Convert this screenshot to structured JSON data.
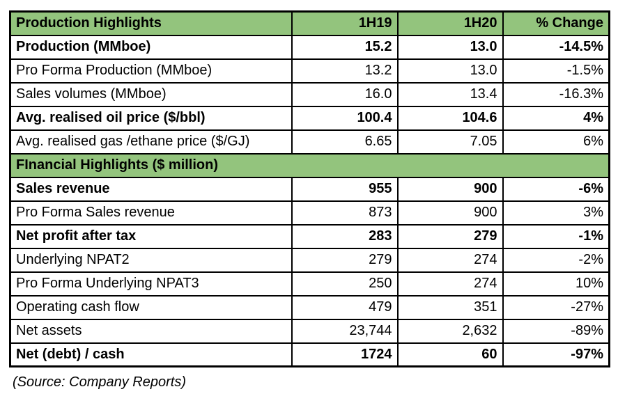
{
  "colors": {
    "section_header_bg": "#93c47d",
    "border": "#000000",
    "text": "#000000",
    "background": "#ffffff"
  },
  "chart_data": {
    "type": "table",
    "title": "Production Highlights",
    "header_row": {
      "label": "Production Highlights",
      "col1": "1H19",
      "col2": "1H20",
      "col3": "% Change"
    },
    "rows": [
      {
        "kind": "data",
        "bold": true,
        "label": "Production (MMboe)",
        "h19": "15.2",
        "h20": "13.0",
        "change": "-14.5%"
      },
      {
        "kind": "data",
        "bold": false,
        "label": "Pro Forma Production (MMboe)",
        "h19": "13.2",
        "h20": "13.0",
        "change": "-1.5%"
      },
      {
        "kind": "data",
        "bold": false,
        "label": "Sales volumes (MMboe)",
        "h19": "16.0",
        "h20": "13.4",
        "change": "-16.3%"
      },
      {
        "kind": "data",
        "bold": true,
        "label": "Avg. realised oil price ($/bbl)",
        "h19": "100.4",
        "h20": "104.6",
        "change": "4%"
      },
      {
        "kind": "data",
        "bold": false,
        "label": "Avg. realised gas /ethane price ($/GJ)",
        "h19": "6.65",
        "h20": "7.05",
        "change": "6%"
      },
      {
        "kind": "section",
        "bold": true,
        "label": "FInancial Highlights ($ million)"
      },
      {
        "kind": "data",
        "bold": true,
        "label": "Sales revenue",
        "h19": "955",
        "h20": "900",
        "change": "-6%"
      },
      {
        "kind": "data",
        "bold": false,
        "label": "Pro Forma Sales revenue",
        "h19": "873",
        "h20": "900",
        "change": "3%"
      },
      {
        "kind": "data",
        "bold": true,
        "label": "Net profit after tax",
        "h19": "283",
        "h20": "279",
        "change": "-1%"
      },
      {
        "kind": "data",
        "bold": false,
        "label": "Underlying NPAT2",
        "h19": "279",
        "h20": "274",
        "change": "-2%"
      },
      {
        "kind": "data",
        "bold": false,
        "label": "Pro Forma Underlying NPAT3",
        "h19": "250",
        "h20": "274",
        "change": "10%"
      },
      {
        "kind": "data",
        "bold": false,
        "label": "Operating cash flow",
        "h19": "479",
        "h20": "351",
        "change": "-27%"
      },
      {
        "kind": "data",
        "bold": false,
        "label": "Net assets",
        "h19": "23,744",
        "h20": "2,632",
        "change": "-89%"
      },
      {
        "kind": "data",
        "bold": true,
        "label": "Net (debt) / cash",
        "h19": "1724",
        "h20": "60",
        "change": "-97%"
      }
    ],
    "footer_note": "(Source: Company Reports)"
  }
}
